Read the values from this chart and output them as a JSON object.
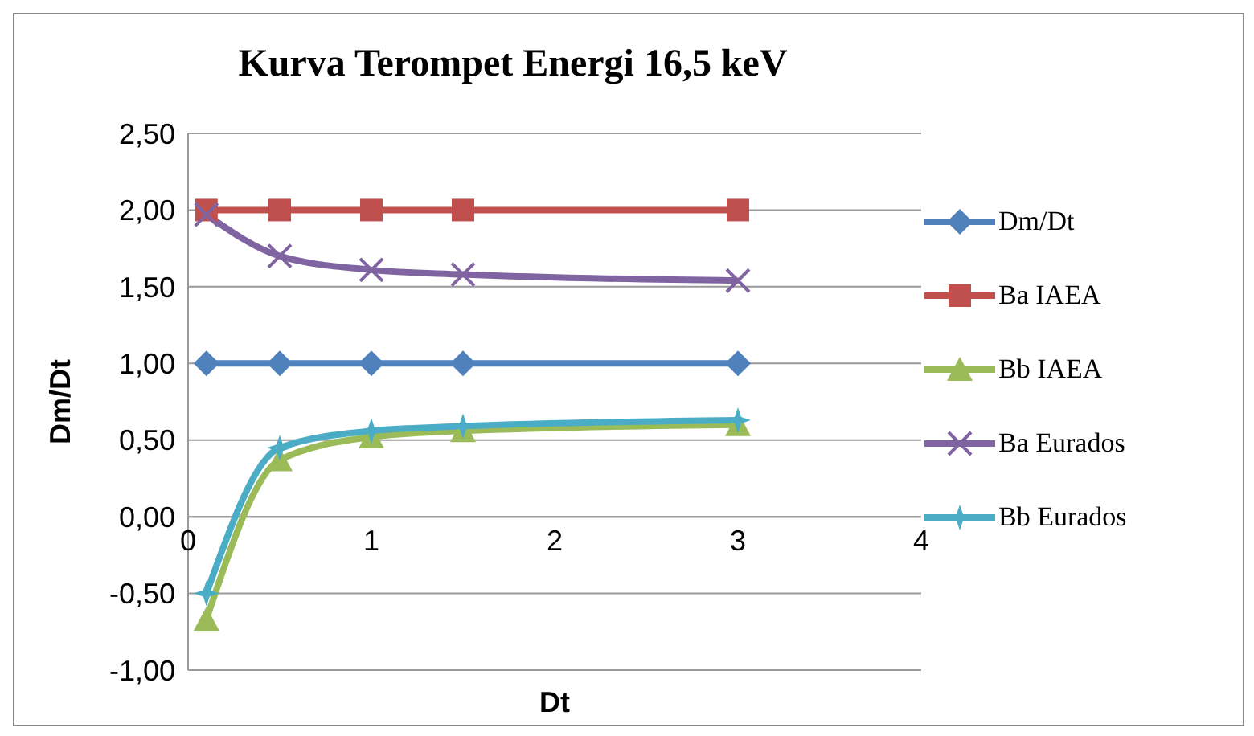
{
  "chart_data": {
    "type": "line",
    "title": "Kurva Terompet Energi 16,5 keV",
    "xlabel": "Dt",
    "ylabel": "Dm/Dt",
    "x": [
      0.1,
      0.5,
      1,
      1.5,
      3
    ],
    "series": [
      {
        "name": "Dm/Dt",
        "color": "#4f81bd",
        "marker": "diamond",
        "values": [
          1,
          1,
          1,
          1,
          1
        ]
      },
      {
        "name": "Ba IAEA",
        "color": "#c0504d",
        "marker": "square",
        "values": [
          2,
          2,
          2,
          2,
          2
        ]
      },
      {
        "name": "Bb IAEA",
        "color": "#9bbb59",
        "marker": "triangle",
        "values": [
          -0.67,
          0.37,
          0.52,
          0.56,
          0.6
        ]
      },
      {
        "name": "Ba Eurados",
        "color": "#8064a2",
        "marker": "cross",
        "values": [
          1.97,
          1.7,
          1.61,
          1.58,
          1.54
        ]
      },
      {
        "name": "Bb Eurados",
        "color": "#4bacc6",
        "marker": "star",
        "values": [
          -0.5,
          0.45,
          0.56,
          0.59,
          0.63
        ]
      }
    ],
    "xlim": [
      0,
      4
    ],
    "xticks": [
      0,
      1,
      2,
      3,
      4
    ],
    "ylim": [
      -1,
      2.5
    ],
    "yticks": [
      {
        "value": -1,
        "label": "-1,00"
      },
      {
        "value": -0.5,
        "label": "-0,50"
      },
      {
        "value": 0,
        "label": "0,00"
      },
      {
        "value": 0.5,
        "label": "0,50"
      },
      {
        "value": 1,
        "label": "1,00"
      },
      {
        "value": 1.5,
        "label": "1,50"
      },
      {
        "value": 2,
        "label": "2,00"
      },
      {
        "value": 2.5,
        "label": "2,50"
      }
    ],
    "grid": "y",
    "legend": "right"
  }
}
